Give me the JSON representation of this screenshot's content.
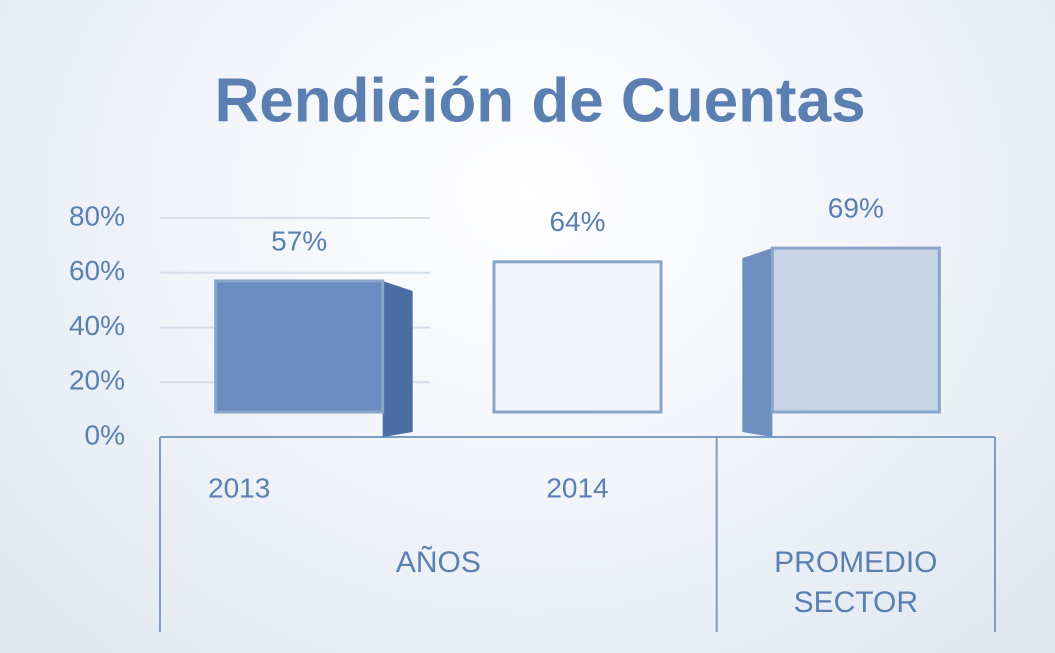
{
  "chart_data": {
    "type": "bar3d",
    "title": "Rendición de Cuentas",
    "categories": [
      "2013",
      "2014",
      null
    ],
    "values": [
      57,
      64,
      69
    ],
    "value_labels": [
      "57%",
      "64%",
      "69%"
    ],
    "colors": [
      "#6a8cbf",
      "#f2f5fa",
      "#c8d5e7"
    ],
    "groups": [
      {
        "name": "AÑOS",
        "size": 2
      },
      {
        "name": "PROMEDIO SECTOR",
        "size": 1
      }
    ],
    "ylim": [
      0,
      80
    ],
    "yticks": [
      {
        "value": 0,
        "label": "0%"
      },
      {
        "value": 20,
        "label": "20%"
      },
      {
        "value": 40,
        "label": "40%"
      },
      {
        "value": 60,
        "label": "60%"
      },
      {
        "value": 80,
        "label": "80%"
      }
    ],
    "grid": true
  }
}
